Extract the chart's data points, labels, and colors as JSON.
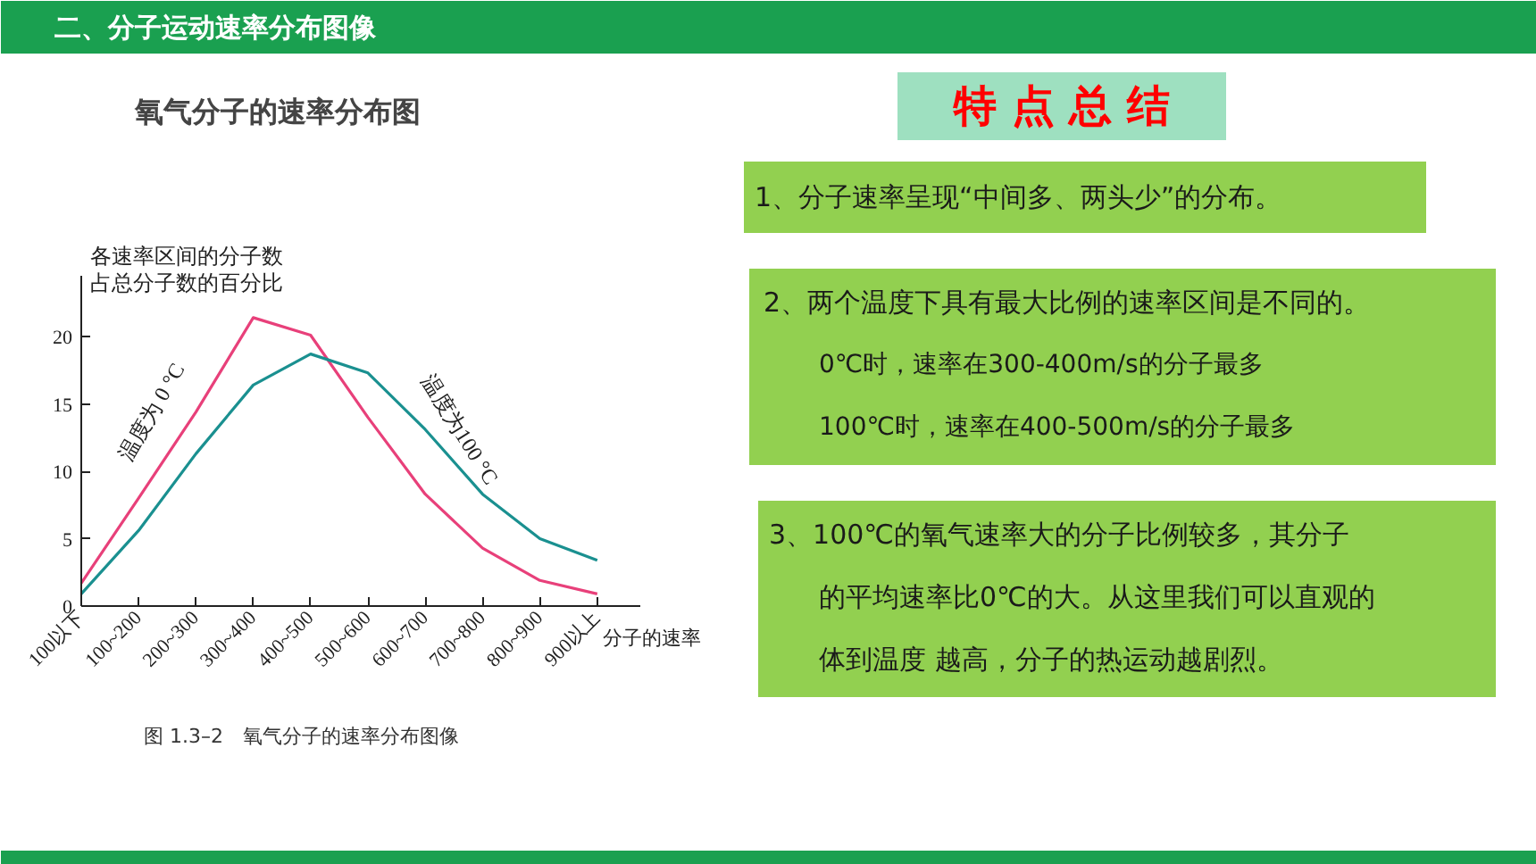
{
  "chart_data": [
    {
      "type": "line",
      "title": "氧气分子的速率分布图",
      "xlabel": "分子的速率",
      "ylabel": "各速率区间的分子数占总分子数的百分比",
      "ylim": [
        0,
        24.5
      ],
      "yticks": [
        0,
        5,
        10,
        15,
        20
      ],
      "categories": [
        "100以下",
        "100~200",
        "200~300",
        "300~400",
        "400~500",
        "500~600",
        "600~700",
        "700~800",
        "800~900",
        "900以上"
      ],
      "series": [
        {
          "color": "#e8407a",
          "values": [
            1.7,
            8.0,
            14.4,
            21.4,
            20.1,
            14.0,
            8.3,
            4.3,
            1.9,
            0.9
          ]
        },
        {
          "color": "#1a9090",
          "values": [
            0.9,
            5.6,
            11.3,
            16.4,
            18.7,
            17.3,
            13.1,
            8.3,
            5.0,
            3.4
          ]
        }
      ],
      "grid": false,
      "line_style": "solid",
      "annotations": [
        "二、分子运动速率分布图像",
        "图 1.3–2　氧气分子的速率分布图像",
        "温度为 0 °C",
        "温度为100 °C"
      ]
    },
    {
      "type": "other",
      "title": "特 点 总 结",
      "annotations": [
        "1、分子速率呈现“中间多、两头少”的分布。",
        "2、两个温度下具有最大比例的速率区间是不同的。\n0℃时，速率在300-400m/s的分子最多\n100℃时，速率在400-500m/s的分子最多",
        "3、100℃的氧气速率大的分子比例较多，其分子的平均速率比0℃的大。从这里我们可以直观的体到温度  越高，分子的热运动越剧烈。"
      ]
    }
  ]
}
